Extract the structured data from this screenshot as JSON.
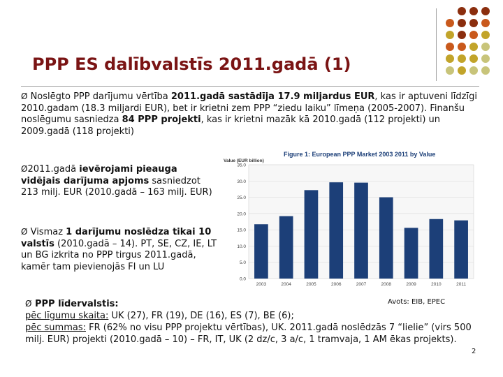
{
  "slide": {
    "title": "PPP ES dalībvalstīs 2011.gadā (1)",
    "page_number": "2",
    "source": "Avots: EIB, EPEC"
  },
  "bullets": {
    "marker": "Ø",
    "p1": [
      {
        "t": " Noslēgto PPP darījumu vērtība ",
        "b": false
      },
      {
        "t": "2011.gadā sastādīja 17.9 miljardus EUR",
        "b": true
      },
      {
        "t": ", kas ir aptuveni līdzīgi 2010.gadam (18.3 miljardi EUR), bet ir krietni zem PPP “ziedu laiku” līmeņa (2005-2007). Finanšu noslēgumu sasniedza ",
        "b": false
      },
      {
        "t": "84 PPP projekti",
        "b": true
      },
      {
        "t": ", kas ir krietni mazāk kā 2010.gadā (112 projekti) un 2009.gadā (118 projekti)",
        "b": false
      }
    ],
    "p2": [
      {
        "t": "2011.gadā ",
        "b": false
      },
      {
        "t": "ievērojami pieauga vidējais darījuma apjoms",
        "b": true
      },
      {
        "t": " sasniedzot 213 milj. EUR (2010.gadā – 163 milj. EUR)",
        "b": false
      }
    ],
    "p3": [
      {
        "t": " Vismaz ",
        "b": false
      },
      {
        "t": "1 darījumu noslēdza tikai 10 valstīs",
        "b": true
      },
      {
        "t": " (2010.gadā – 14). PT, SE, CZ, IE, LT un BG izkrita no PPP tirgus 2011.gadā, kamēr tam pievienojās FI un LU",
        "b": false
      }
    ],
    "p4": {
      "heading": " PPP līdervalstis:",
      "line1_label": "pēc līgumu skaita:",
      "line1_text": " UK (27), FR (19), DE (16), ES (7), BE (6);",
      "line2_label": "pēc summas:",
      "line2_text": " FR (62% no visu PPP projektu vērtības), UK. 2011.gadā noslēdzās 7 “lielie” (virs 500 milj. EUR) projekti (2010.gadā – 10) – FR, IT, UK (2 dz/c, 3 a/c, 1 tramvaja, 1 AM ēkas projekts)."
    }
  },
  "colors": {
    "title": "#7a1414",
    "bar": "#1c3f78",
    "chart_title": "#1c3f78",
    "dot_dark": "#8b2e0e",
    "dot_orange": "#c9591c",
    "dot_olive": "#c2a42a",
    "dot_khaki": "#c8c47a"
  },
  "chart_data": {
    "type": "bar",
    "title": "Figure 1: European PPP Market 2003 2011 by Value",
    "ylabel": "Value (EUR billion)",
    "categories": [
      "2003",
      "2004",
      "2005",
      "2006",
      "2007",
      "2008",
      "2009",
      "2010",
      "2011"
    ],
    "values": [
      16.7,
      19.2,
      27.2,
      29.6,
      29.5,
      25.0,
      15.6,
      18.3,
      17.9
    ],
    "ylim": [
      0,
      35
    ],
    "yticks": [
      "0.0",
      "5.0",
      "10.0",
      "15.0",
      "20.0",
      "25.0",
      "30.0",
      "35.0"
    ]
  }
}
